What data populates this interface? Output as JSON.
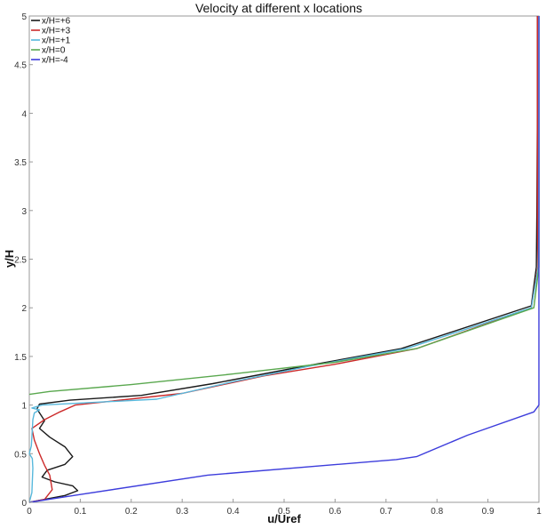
{
  "chart_data": {
    "type": "line",
    "title": "Velocity at different x locations",
    "xlabel": "u/Uref",
    "ylabel": "y/H",
    "xlim": [
      0,
      1
    ],
    "ylim": [
      0,
      5
    ],
    "xticks": [
      "0",
      "0.1",
      "0.2",
      "0.3",
      "0.4",
      "0.5",
      "0.6",
      "0.7",
      "0.8",
      "0.9",
      "1"
    ],
    "yticks": [
      "0",
      "0.5",
      "1",
      "1.5",
      "2",
      "2.5",
      "3",
      "3.5",
      "4",
      "4.5",
      "5"
    ],
    "grid": false,
    "legend_position": "top-left",
    "series": [
      {
        "name": "x/H=+6",
        "color": "#1a1a1a",
        "points": [
          [
            0.0,
            0.0
          ],
          [
            0.04,
            0.04
          ],
          [
            0.07,
            0.07
          ],
          [
            0.095,
            0.12
          ],
          [
            0.085,
            0.17
          ],
          [
            0.05,
            0.21
          ],
          [
            0.025,
            0.26
          ],
          [
            0.035,
            0.33
          ],
          [
            0.07,
            0.39
          ],
          [
            0.085,
            0.47
          ],
          [
            0.07,
            0.57
          ],
          [
            0.04,
            0.67
          ],
          [
            0.02,
            0.76
          ],
          [
            0.03,
            0.84
          ],
          [
            0.02,
            0.92
          ],
          [
            0.015,
            0.96
          ],
          [
            0.02,
            1.01
          ],
          [
            0.08,
            1.05
          ],
          [
            0.22,
            1.1
          ],
          [
            0.36,
            1.22
          ],
          [
            0.52,
            1.38
          ],
          [
            0.73,
            1.58
          ],
          [
            0.985,
            2.02
          ],
          [
            0.995,
            2.42
          ],
          [
            0.996,
            3.0
          ],
          [
            0.997,
            4.0
          ],
          [
            0.997,
            5.0
          ]
        ]
      },
      {
        "name": "x/H=+3",
        "color": "#cc2a2a",
        "points": [
          [
            0.0,
            0.0
          ],
          [
            0.03,
            0.03
          ],
          [
            0.045,
            0.13
          ],
          [
            0.04,
            0.28
          ],
          [
            0.03,
            0.38
          ],
          [
            0.02,
            0.5
          ],
          [
            0.01,
            0.64
          ],
          [
            0.005,
            0.76
          ],
          [
            0.03,
            0.85
          ],
          [
            0.06,
            0.93
          ],
          [
            0.09,
            1.0
          ],
          [
            0.3,
            1.12
          ],
          [
            0.46,
            1.3
          ],
          [
            0.6,
            1.42
          ],
          [
            0.76,
            1.58
          ],
          [
            0.985,
            2.0
          ],
          [
            0.998,
            2.42
          ],
          [
            0.997,
            3.0
          ],
          [
            0.997,
            4.0
          ],
          [
            0.997,
            5.0
          ]
        ]
      },
      {
        "name": "x/H=+1",
        "color": "#57b8dc",
        "points": [
          [
            0.0,
            0.0
          ],
          [
            0.005,
            0.1
          ],
          [
            0.007,
            0.35
          ],
          [
            0.006,
            0.45
          ],
          [
            0.0,
            0.5
          ],
          [
            0.004,
            0.58
          ],
          [
            0.006,
            0.75
          ],
          [
            0.007,
            0.85
          ],
          [
            0.01,
            0.92
          ],
          [
            0.02,
            0.95
          ],
          [
            0.005,
            0.97
          ],
          [
            0.025,
            1.0
          ],
          [
            0.25,
            1.06
          ],
          [
            0.4,
            1.24
          ],
          [
            0.55,
            1.4
          ],
          [
            0.74,
            1.58
          ],
          [
            0.985,
            2.0
          ],
          [
            0.999,
            2.42
          ],
          [
            1.0,
            3.0
          ],
          [
            1.0,
            4.0
          ],
          [
            1.0,
            5.0
          ]
        ]
      },
      {
        "name": "x/H=0",
        "color": "#5aa84f",
        "points": [
          [
            0.0,
            1.11
          ],
          [
            0.04,
            1.14
          ],
          [
            0.2,
            1.21
          ],
          [
            0.4,
            1.32
          ],
          [
            0.6,
            1.44
          ],
          [
            0.76,
            1.58
          ],
          [
            0.99,
            2.0
          ],
          [
            1.0,
            2.42
          ],
          [
            1.0,
            3.0
          ],
          [
            1.0,
            4.0
          ],
          [
            1.0,
            5.0
          ]
        ]
      },
      {
        "name": "x/H=-4",
        "color": "#3d3ddc",
        "points": [
          [
            0.0,
            0.0
          ],
          [
            0.1,
            0.08
          ],
          [
            0.35,
            0.28
          ],
          [
            0.72,
            0.44
          ],
          [
            0.76,
            0.47
          ],
          [
            0.86,
            0.69
          ],
          [
            0.99,
            0.93
          ],
          [
            1.0,
            1.0
          ],
          [
            1.0,
            1.4
          ],
          [
            1.0,
            2.0
          ],
          [
            1.0,
            3.0
          ],
          [
            1.0,
            4.0
          ],
          [
            1.0,
            5.0
          ]
        ]
      }
    ]
  }
}
